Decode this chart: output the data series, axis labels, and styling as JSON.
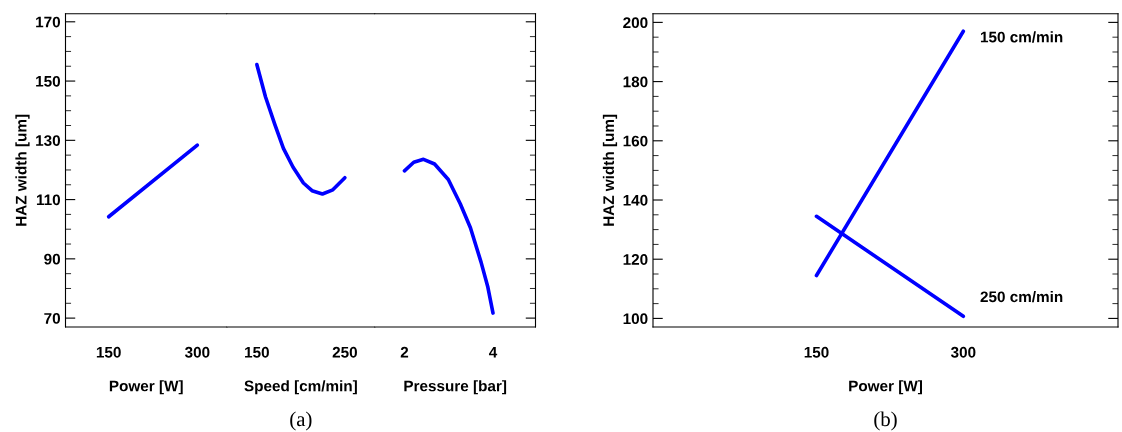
{
  "chart_data": [
    {
      "type": "line",
      "xlabel": "Power [W]",
      "ylabel": "HAZ width [um]",
      "x": [
        150,
        300
      ],
      "series": [
        {
          "color": "#0000ff",
          "values": [
            104.2,
            128.4
          ]
        }
      ],
      "xlim": [
        77,
        350
      ],
      "xticks": [
        150,
        300
      ],
      "ylim": [
        67,
        172.7
      ],
      "yticks": [
        70,
        {
          "value": 75,
          "label": null
        },
        {
          "value": 80,
          "label": null
        },
        {
          "value": 85,
          "label": null
        },
        90,
        {
          "value": 95,
          "label": null
        },
        {
          "value": 100,
          "label": null
        },
        {
          "value": 105,
          "label": null
        },
        110,
        {
          "value": 115,
          "label": null
        },
        {
          "value": 120,
          "label": null
        },
        {
          "value": 125,
          "label": null
        },
        130,
        {
          "value": 135,
          "label": null
        },
        {
          "value": 140,
          "label": null
        },
        {
          "value": 145,
          "label": null
        },
        150,
        {
          "value": 155,
          "label": null
        },
        {
          "value": 160,
          "label": null
        },
        {
          "value": 165,
          "label": null
        },
        170
      ],
      "grid": false,
      "legend": false
    },
    {
      "type": "line",
      "xlabel": "Speed [cm/min]",
      "x": [
        150,
        159.8,
        170.4,
        180.2,
        191.2,
        202.9,
        212.7,
        224.5,
        236.3,
        250
      ],
      "series": [
        {
          "color": "#0000ff",
          "values": [
            155.6,
            144.7,
            135.4,
            127.3,
            120.9,
            115.6,
            113,
            111.9,
            113.3,
            117.4
          ]
        }
      ],
      "xlim": [
        116,
        284
      ],
      "xticks": [
        150,
        250
      ],
      "ylim": [
        67,
        172.7
      ],
      "tick_labels": "x",
      "grid": false,
      "legend": false,
      "annotations": [
        "(a)"
      ]
    },
    {
      "type": "line",
      "xlabel": "Pressure [bar]",
      "x": [
        2,
        2.21,
        2.43,
        2.68,
        2.99,
        3.26,
        3.49,
        3.73,
        3.88,
        4
      ],
      "series": [
        {
          "color": "#0000ff",
          "values": [
            119.7,
            122.6,
            123.6,
            122,
            116.8,
            108.6,
            100.5,
            88.9,
            80.7,
            71.7
          ]
        }
      ],
      "xlim": [
        1.33,
        4.96
      ],
      "xticks": [
        2,
        4
      ],
      "ylim": [
        67,
        172.7
      ],
      "yticks": [
        70,
        {
          "value": 75,
          "label": null
        },
        {
          "value": 80,
          "label": null
        },
        {
          "value": 85,
          "label": null
        },
        90,
        {
          "value": 95,
          "label": null
        },
        {
          "value": 100,
          "label": null
        },
        {
          "value": 105,
          "label": null
        },
        110,
        {
          "value": 115,
          "label": null
        },
        {
          "value": 120,
          "label": null
        },
        {
          "value": 125,
          "label": null
        },
        130,
        {
          "value": 135,
          "label": null
        },
        {
          "value": 140,
          "label": null
        },
        {
          "value": 145,
          "label": null
        },
        150,
        {
          "value": 155,
          "label": null
        },
        {
          "value": 160,
          "label": null
        },
        {
          "value": 165,
          "label": null
        },
        170
      ],
      "tick_labels": "x",
      "grid": false,
      "legend": false
    },
    {
      "type": "line",
      "xlabel": "Power [W]",
      "ylabel": "HAZ width [um]",
      "x": [
        150,
        300
      ],
      "series": [
        {
          "name": "150 cm/min",
          "color": "#0000ff",
          "values": [
            114.5,
            197
          ]
        },
        {
          "name": "250 cm/min",
          "color": "#0000ff",
          "values": [
            134.5,
            100.7
          ]
        }
      ],
      "xlim": [
        -17,
        458
      ],
      "xticks": [
        150,
        300
      ],
      "ylim": [
        97.1,
        202.9
      ],
      "yticks": [
        100,
        {
          "value": 105,
          "label": null
        },
        {
          "value": 110,
          "label": null
        },
        {
          "value": 115,
          "label": null
        },
        120,
        {
          "value": 125,
          "label": null
        },
        {
          "value": 130,
          "label": null
        },
        {
          "value": 135,
          "label": null
        },
        140,
        {
          "value": 145,
          "label": null
        },
        {
          "value": 150,
          "label": null
        },
        {
          "value": 155,
          "label": null
        },
        160,
        {
          "value": 165,
          "label": null
        },
        {
          "value": 170,
          "label": null
        },
        {
          "value": 175,
          "label": null
        },
        180,
        {
          "value": 185,
          "label": null
        },
        {
          "value": 190,
          "label": null
        },
        {
          "value": 195,
          "label": null
        },
        200
      ],
      "grid": false,
      "legend": false,
      "annotations": [
        "(b)"
      ]
    }
  ]
}
